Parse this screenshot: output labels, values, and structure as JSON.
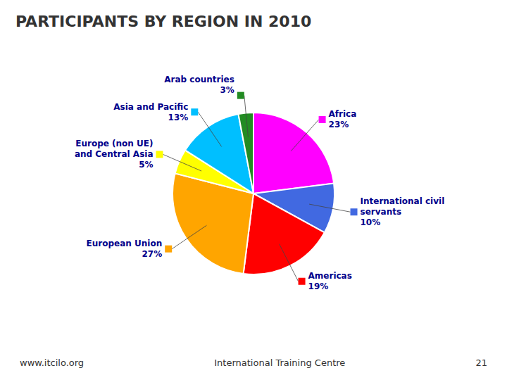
{
  "chart_data": {
    "type": "pie",
    "title": "PARTICIPANTS BY REGION IN 2010",
    "categories": [
      "Africa",
      "International civil\nservants",
      "Americas",
      "European Union",
      "Europe (non UE)\nand Central Asia",
      "Asia and Pacific",
      "Arab countries"
    ],
    "values": [
      23,
      10,
      19,
      27,
      5,
      13,
      3
    ],
    "value_labels": [
      "23%",
      "10%",
      "19%",
      "27%",
      "5%",
      "13%",
      "3%"
    ],
    "colors": [
      "#FF00FF",
      "#4169E1",
      "#FF0000",
      "#FFA500",
      "#FFFF00",
      "#00BFFF",
      "#228B22"
    ],
    "data_labels": true,
    "annotations": [
      "www.itcilo.org",
      "International Training Centre",
      "21"
    ]
  }
}
